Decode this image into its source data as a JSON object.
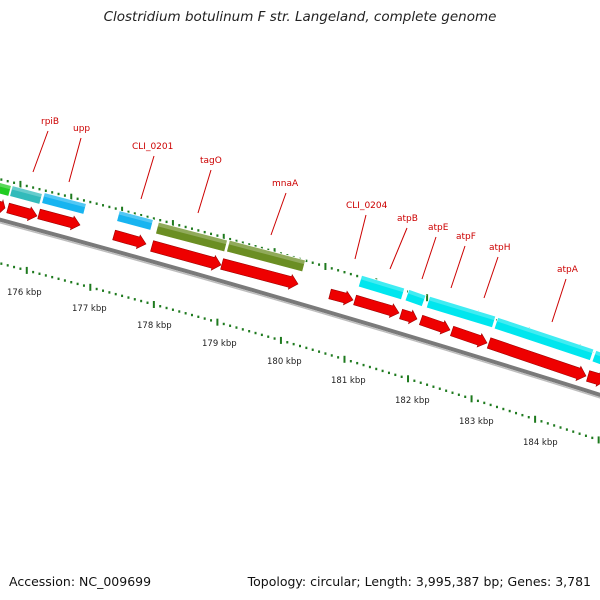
{
  "title": "Clostridium botulinum F str. Langeland, complete genome",
  "accession": "Accession: NC_009699",
  "summary": "Topology: circular; Length: 3,995,387 bp; Genes: 3,781",
  "colors": {
    "backbone": "#7a7a7a",
    "tick": "#1e7a1e",
    "label": "#cc0000",
    "cds_reverse": "#ee0000",
    "cyan_gene": "#00e6ee",
    "blue_gene": "#18b4f0",
    "olive_gene": "#6b8e23",
    "green_gene": "#22cc22",
    "kbp_text": "#222222"
  },
  "kbp_labels": [
    "176 kbp",
    "177 kbp",
    "178 kbp",
    "179 kbp",
    "180 kbp",
    "181 kbp",
    "182 kbp",
    "183 kbp",
    "184 kbp"
  ],
  "gene_labels": [
    "rpiB",
    "upp",
    "CLI_0201",
    "tagO",
    "mnaA",
    "CLI_0204",
    "atpB",
    "atpE",
    "atpF",
    "atpH",
    "atpA"
  ]
}
